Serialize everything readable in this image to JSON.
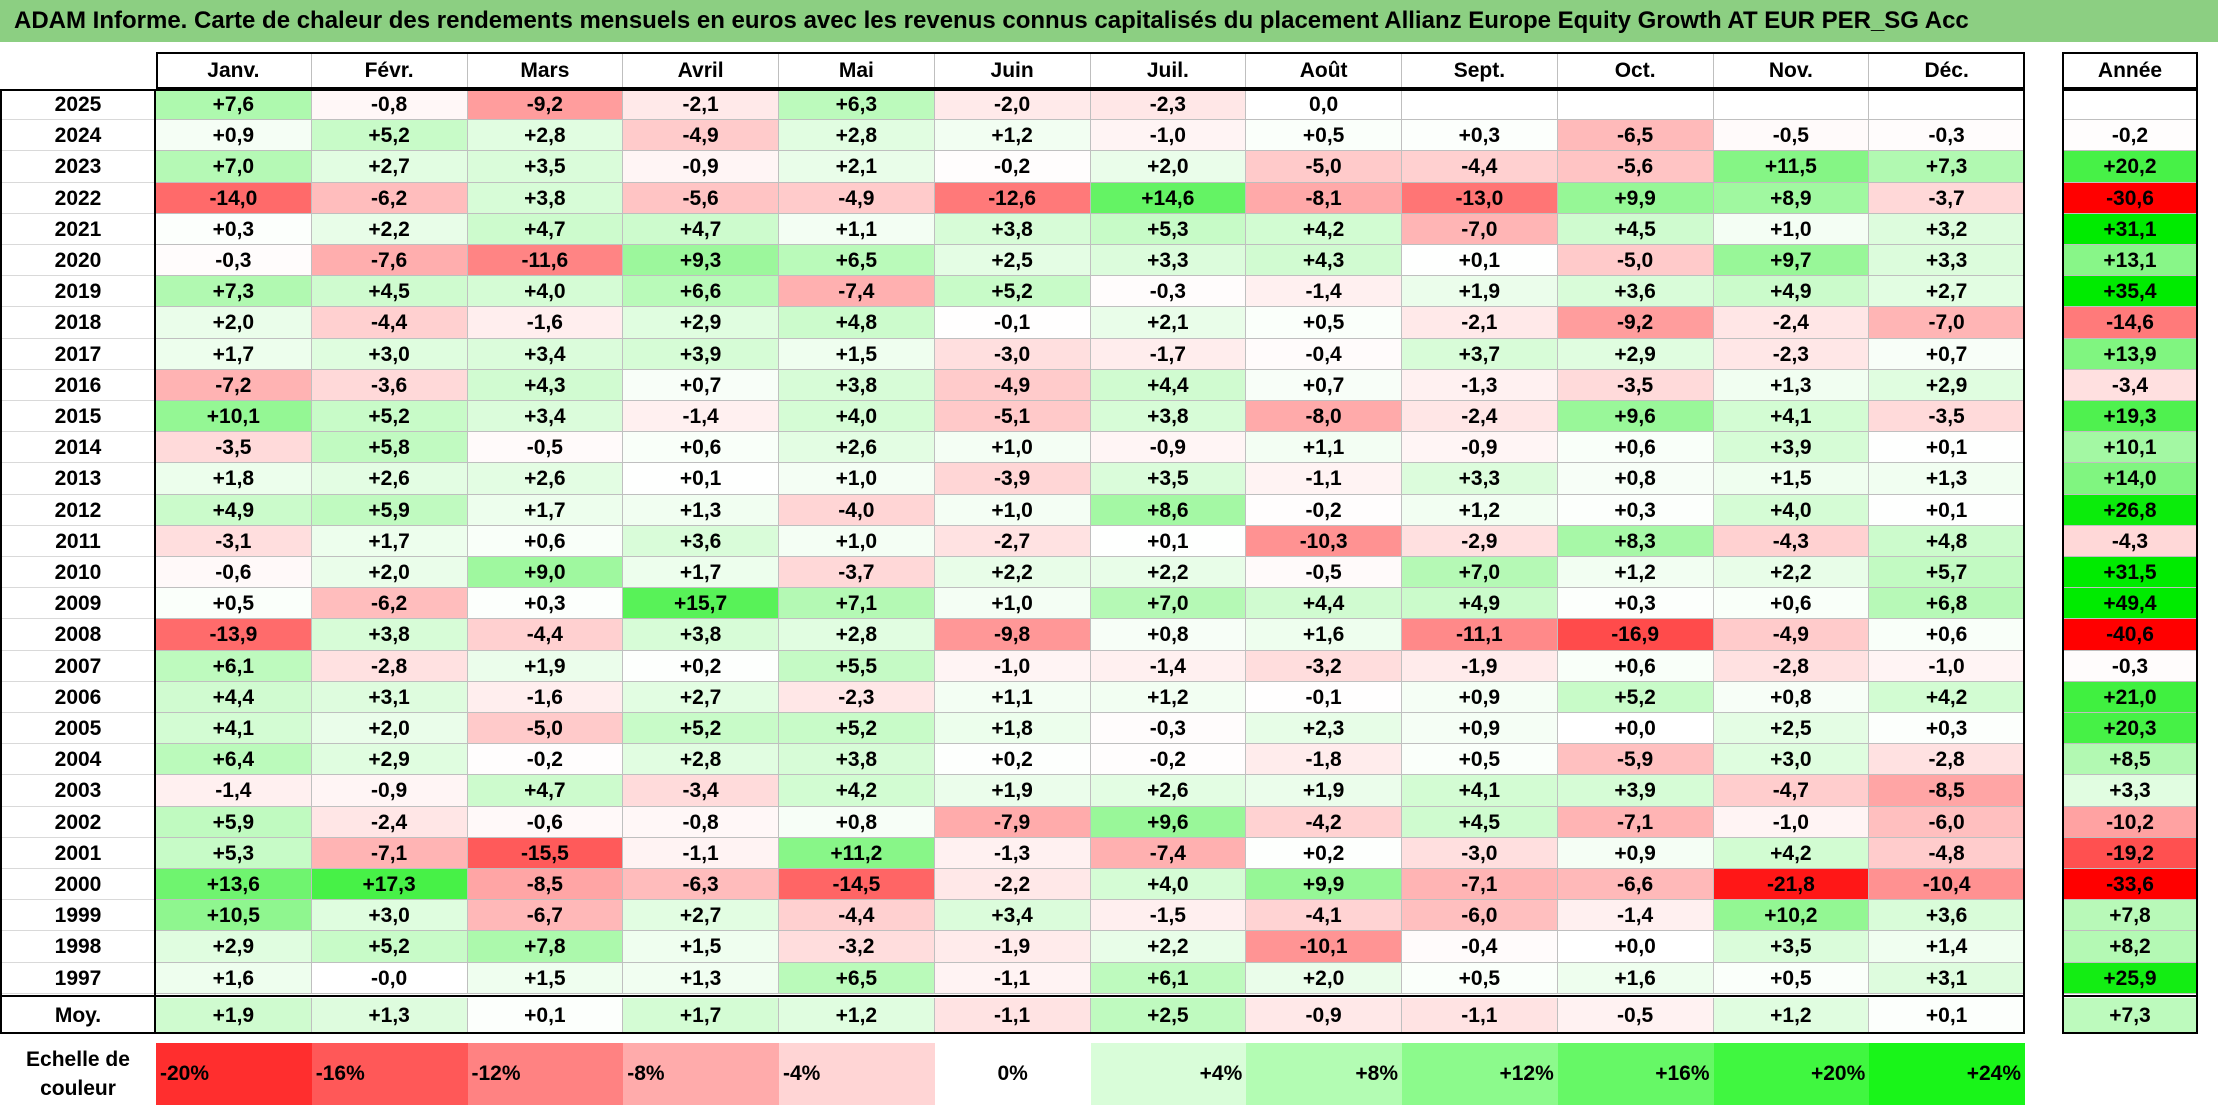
{
  "title": "ADAM Informe. Carte de chaleur des rendements mensuels en euros avec les revenus connus capitalisés du placement Allianz Europe Equity Growth AT EUR PER_SG Acc",
  "chart_data": {
    "type": "heatmap",
    "title": "ADAM Informe. Carte de chaleur des rendements mensuels en euros avec les revenus connus capitalisés du placement Allianz Europe Equity Growth AT EUR PER_SG Acc",
    "columns": [
      "Janv.",
      "Févr.",
      "Mars",
      "Avril",
      "Mai",
      "Juin",
      "Juil.",
      "Août",
      "Sept.",
      "Oct.",
      "Nov.",
      "Déc."
    ],
    "year_column_label": "Année",
    "rows": [
      {
        "year": "2025",
        "months": [
          "+7,6",
          "-0,8",
          "-9,2",
          "-2,1",
          "+6,3",
          "-2,0",
          "-2,3",
          "0,0",
          "",
          "",
          "",
          ""
        ],
        "annual": ""
      },
      {
        "year": "2024",
        "months": [
          "+0,9",
          "+5,2",
          "+2,8",
          "-4,9",
          "+2,8",
          "+1,2",
          "-1,0",
          "+0,5",
          "+0,3",
          "-6,5",
          "-0,5",
          "-0,3"
        ],
        "annual": "-0,2"
      },
      {
        "year": "2023",
        "months": [
          "+7,0",
          "+2,7",
          "+3,5",
          "-0,9",
          "+2,1",
          "-0,2",
          "+2,0",
          "-5,0",
          "-4,4",
          "-5,6",
          "+11,5",
          "+7,3"
        ],
        "annual": "+20,2"
      },
      {
        "year": "2022",
        "months": [
          "-14,0",
          "-6,2",
          "+3,8",
          "-5,6",
          "-4,9",
          "-12,6",
          "+14,6",
          "-8,1",
          "-13,0",
          "+9,9",
          "+8,9",
          "-3,7"
        ],
        "annual": "-30,6"
      },
      {
        "year": "2021",
        "months": [
          "+0,3",
          "+2,2",
          "+4,7",
          "+4,7",
          "+1,1",
          "+3,8",
          "+5,3",
          "+4,2",
          "-7,0",
          "+4,5",
          "+1,0",
          "+3,2"
        ],
        "annual": "+31,1"
      },
      {
        "year": "2020",
        "months": [
          "-0,3",
          "-7,6",
          "-11,6",
          "+9,3",
          "+6,5",
          "+2,5",
          "+3,3",
          "+4,3",
          "+0,1",
          "-5,0",
          "+9,7",
          "+3,3"
        ],
        "annual": "+13,1"
      },
      {
        "year": "2019",
        "months": [
          "+7,3",
          "+4,5",
          "+4,0",
          "+6,6",
          "-7,4",
          "+5,2",
          "-0,3",
          "-1,4",
          "+1,9",
          "+3,6",
          "+4,9",
          "+2,7"
        ],
        "annual": "+35,4"
      },
      {
        "year": "2018",
        "months": [
          "+2,0",
          "-4,4",
          "-1,6",
          "+2,9",
          "+4,8",
          "-0,1",
          "+2,1",
          "+0,5",
          "-2,1",
          "-9,2",
          "-2,4",
          "-7,0"
        ],
        "annual": "-14,6"
      },
      {
        "year": "2017",
        "months": [
          "+1,7",
          "+3,0",
          "+3,4",
          "+3,9",
          "+1,5",
          "-3,0",
          "-1,7",
          "-0,4",
          "+3,7",
          "+2,9",
          "-2,3",
          "+0,7"
        ],
        "annual": "+13,9"
      },
      {
        "year": "2016",
        "months": [
          "-7,2",
          "-3,6",
          "+4,3",
          "+0,7",
          "+3,8",
          "-4,9",
          "+4,4",
          "+0,7",
          "-1,3",
          "-3,5",
          "+1,3",
          "+2,9"
        ],
        "annual": "-3,4"
      },
      {
        "year": "2015",
        "months": [
          "+10,1",
          "+5,2",
          "+3,4",
          "-1,4",
          "+4,0",
          "-5,1",
          "+3,8",
          "-8,0",
          "-2,4",
          "+9,6",
          "+4,1",
          "-3,5"
        ],
        "annual": "+19,3"
      },
      {
        "year": "2014",
        "months": [
          "-3,5",
          "+5,8",
          "-0,5",
          "+0,6",
          "+2,6",
          "+1,0",
          "-0,9",
          "+1,1",
          "-0,9",
          "+0,6",
          "+3,9",
          "+0,1"
        ],
        "annual": "+10,1"
      },
      {
        "year": "2013",
        "months": [
          "+1,8",
          "+2,6",
          "+2,6",
          "+0,1",
          "+1,0",
          "-3,9",
          "+3,5",
          "-1,1",
          "+3,3",
          "+0,8",
          "+1,5",
          "+1,3"
        ],
        "annual": "+14,0"
      },
      {
        "year": "2012",
        "months": [
          "+4,9",
          "+5,9",
          "+1,7",
          "+1,3",
          "-4,0",
          "+1,0",
          "+8,6",
          "-0,2",
          "+1,2",
          "+0,3",
          "+4,0",
          "+0,1"
        ],
        "annual": "+26,8"
      },
      {
        "year": "2011",
        "months": [
          "-3,1",
          "+1,7",
          "+0,6",
          "+3,6",
          "+1,0",
          "-2,7",
          "+0,1",
          "-10,3",
          "-2,9",
          "+8,3",
          "-4,3",
          "+4,8"
        ],
        "annual": "-4,3"
      },
      {
        "year": "2010",
        "months": [
          "-0,6",
          "+2,0",
          "+9,0",
          "+1,7",
          "-3,7",
          "+2,2",
          "+2,2",
          "-0,5",
          "+7,0",
          "+1,2",
          "+2,2",
          "+5,7"
        ],
        "annual": "+31,5"
      },
      {
        "year": "2009",
        "months": [
          "+0,5",
          "-6,2",
          "+0,3",
          "+15,7",
          "+7,1",
          "+1,0",
          "+7,0",
          "+4,4",
          "+4,9",
          "+0,3",
          "+0,6",
          "+6,8"
        ],
        "annual": "+49,4"
      },
      {
        "year": "2008",
        "months": [
          "-13,9",
          "+3,8",
          "-4,4",
          "+3,8",
          "+2,8",
          "-9,8",
          "+0,8",
          "+1,6",
          "-11,1",
          "-16,9",
          "-4,9",
          "+0,6"
        ],
        "annual": "-40,6"
      },
      {
        "year": "2007",
        "months": [
          "+6,1",
          "-2,8",
          "+1,9",
          "+0,2",
          "+5,5",
          "-1,0",
          "-1,4",
          "-3,2",
          "-1,9",
          "+0,6",
          "-2,8",
          "-1,0"
        ],
        "annual": "-0,3"
      },
      {
        "year": "2006",
        "months": [
          "+4,4",
          "+3,1",
          "-1,6",
          "+2,7",
          "-2,3",
          "+1,1",
          "+1,2",
          "-0,1",
          "+0,9",
          "+5,2",
          "+0,8",
          "+4,2"
        ],
        "annual": "+21,0"
      },
      {
        "year": "2005",
        "months": [
          "+4,1",
          "+2,0",
          "-5,0",
          "+5,2",
          "+5,2",
          "+1,8",
          "-0,3",
          "+2,3",
          "+0,9",
          "+0,0",
          "+2,5",
          "+0,3"
        ],
        "annual": "+20,3"
      },
      {
        "year": "2004",
        "months": [
          "+6,4",
          "+2,9",
          "-0,2",
          "+2,8",
          "+3,8",
          "+0,2",
          "-0,2",
          "-1,8",
          "+0,5",
          "-5,9",
          "+3,0",
          "-2,8"
        ],
        "annual": "+8,5"
      },
      {
        "year": "2003",
        "months": [
          "-1,4",
          "-0,9",
          "+4,7",
          "-3,4",
          "+4,2",
          "+1,9",
          "+2,6",
          "+1,9",
          "+4,1",
          "+3,9",
          "-4,7",
          "-8,5"
        ],
        "annual": "+3,3"
      },
      {
        "year": "2002",
        "months": [
          "+5,9",
          "-2,4",
          "-0,6",
          "-0,8",
          "+0,8",
          "-7,9",
          "+9,6",
          "-4,2",
          "+4,5",
          "-7,1",
          "-1,0",
          "-6,0"
        ],
        "annual": "-10,2"
      },
      {
        "year": "2001",
        "months": [
          "+5,3",
          "-7,1",
          "-15,5",
          "-1,1",
          "+11,2",
          "-1,3",
          "-7,4",
          "+0,2",
          "-3,0",
          "+0,9",
          "+4,2",
          "-4,8"
        ],
        "annual": "-19,2"
      },
      {
        "year": "2000",
        "months": [
          "+13,6",
          "+17,3",
          "-8,5",
          "-6,3",
          "-14,5",
          "-2,2",
          "+4,0",
          "+9,9",
          "-7,1",
          "-6,6",
          "-21,8",
          "-10,4"
        ],
        "annual": "-33,6"
      },
      {
        "year": "1999",
        "months": [
          "+10,5",
          "+3,0",
          "-6,7",
          "+2,7",
          "-4,4",
          "+3,4",
          "-1,5",
          "-4,1",
          "-6,0",
          "-1,4",
          "+10,2",
          "+3,6"
        ],
        "annual": "+7,8"
      },
      {
        "year": "1998",
        "months": [
          "+2,9",
          "+5,2",
          "+7,8",
          "+1,5",
          "-3,2",
          "-1,9",
          "+2,2",
          "-10,1",
          "-0,4",
          "+0,0",
          "+3,5",
          "+1,4"
        ],
        "annual": "+8,2"
      },
      {
        "year": "1997",
        "months": [
          "+1,6",
          "-0,0",
          "+1,5",
          "+1,3",
          "+6,5",
          "-1,1",
          "+6,1",
          "+2,0",
          "+0,5",
          "+1,6",
          "+0,5",
          "+3,1"
        ],
        "annual": "+25,9"
      }
    ],
    "average_row": {
      "label": "Moy.",
      "months": [
        "+1,9",
        "+1,3",
        "+0,1",
        "+1,7",
        "+1,2",
        "-1,1",
        "+2,5",
        "-0,9",
        "-1,1",
        "-0,5",
        "+1,2",
        "+0,1"
      ],
      "annual": "+7,3"
    },
    "color_scale": {
      "label": "Echelle de couleur",
      "stops": [
        "-20%",
        "-16%",
        "-12%",
        "-8%",
        "-4%",
        "0%",
        "+4%",
        "+8%",
        "+12%",
        "+16%",
        "+20%",
        "+24%"
      ],
      "negative_color": "#ff0000",
      "neutral_color": "#ffffff",
      "positive_color": "#00ff00"
    }
  }
}
